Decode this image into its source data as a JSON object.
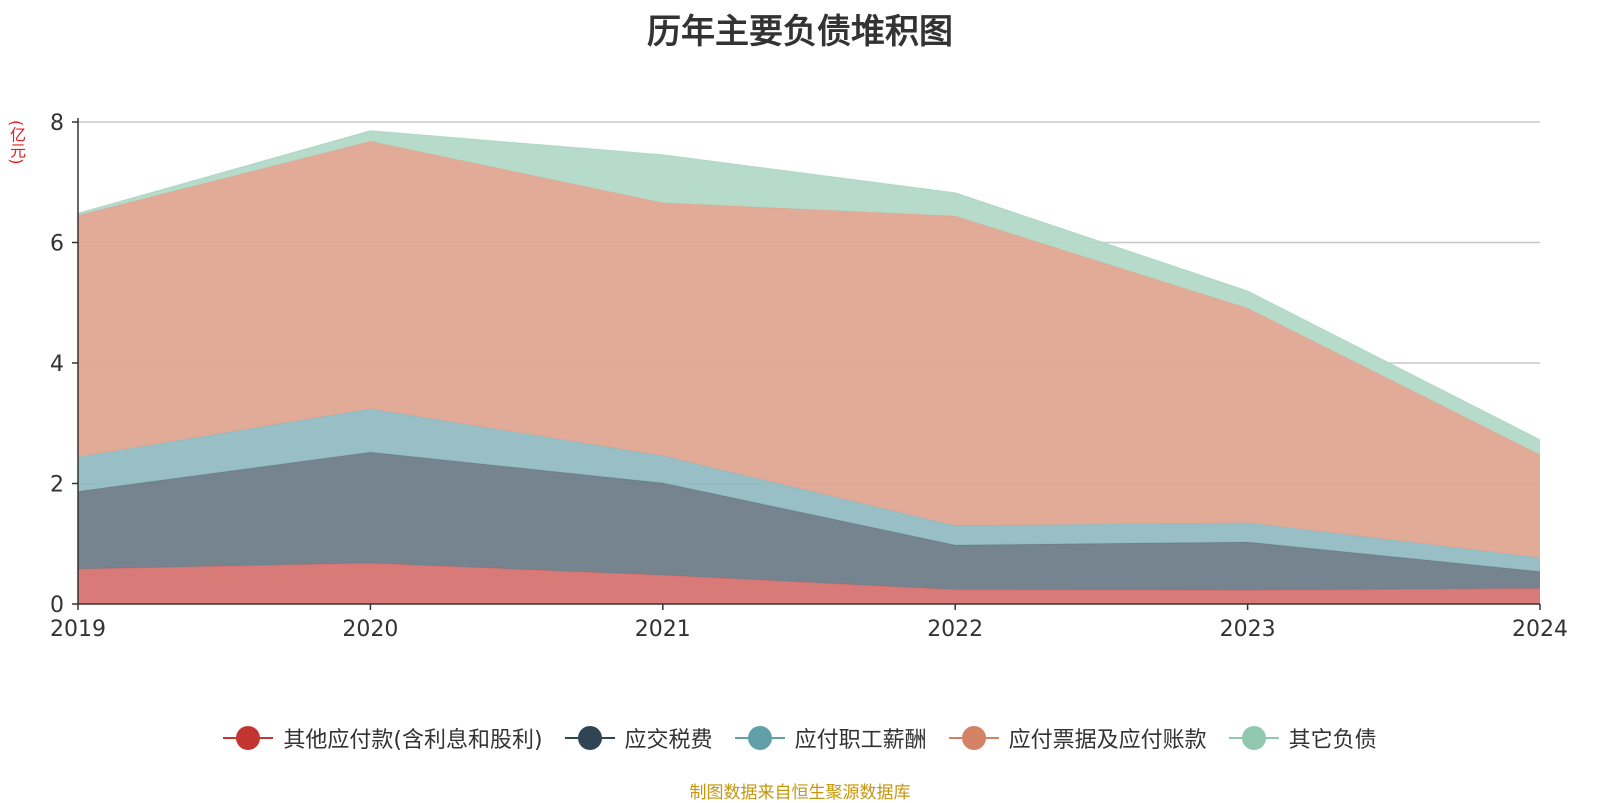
{
  "chart_data": {
    "type": "area",
    "stacked": true,
    "title": "历年主要负债堆积图",
    "ylabel": "(亿元)",
    "xlabel": "",
    "categories": [
      "2019",
      "2020",
      "2021",
      "2022",
      "2023",
      "2024"
    ],
    "ylim": [
      0,
      8
    ],
    "yticks": [
      0,
      2,
      4,
      6,
      8
    ],
    "grid": true,
    "legend_position": "bottom",
    "series": [
      {
        "name": "其他应付款(含利息和股利)",
        "color": "#c23531",
        "fill": "#d67371",
        "values": [
          0.58,
          0.68,
          0.48,
          0.24,
          0.23,
          0.26
        ]
      },
      {
        "name": "应交税费",
        "color": "#2f4554",
        "fill": "#6e7d88",
        "values": [
          1.29,
          1.84,
          1.53,
          0.74,
          0.8,
          0.28
        ]
      },
      {
        "name": "应付职工薪酬",
        "color": "#61a0a8",
        "fill": "#91bcc2",
        "values": [
          0.57,
          0.72,
          0.45,
          0.32,
          0.32,
          0.23
        ]
      },
      {
        "name": "应付票据及应付账款",
        "color": "#d48265",
        "fill": "#e0a792",
        "values": [
          4.01,
          4.44,
          4.2,
          5.14,
          3.56,
          1.71
        ]
      },
      {
        "name": "其它负债",
        "color": "#91c7ae",
        "fill": "#b2d9c7",
        "values": [
          0.03,
          0.17,
          0.79,
          0.38,
          0.28,
          0.24
        ]
      }
    ]
  },
  "footer": {
    "source": "制图数据来自恒生聚源数据库"
  }
}
